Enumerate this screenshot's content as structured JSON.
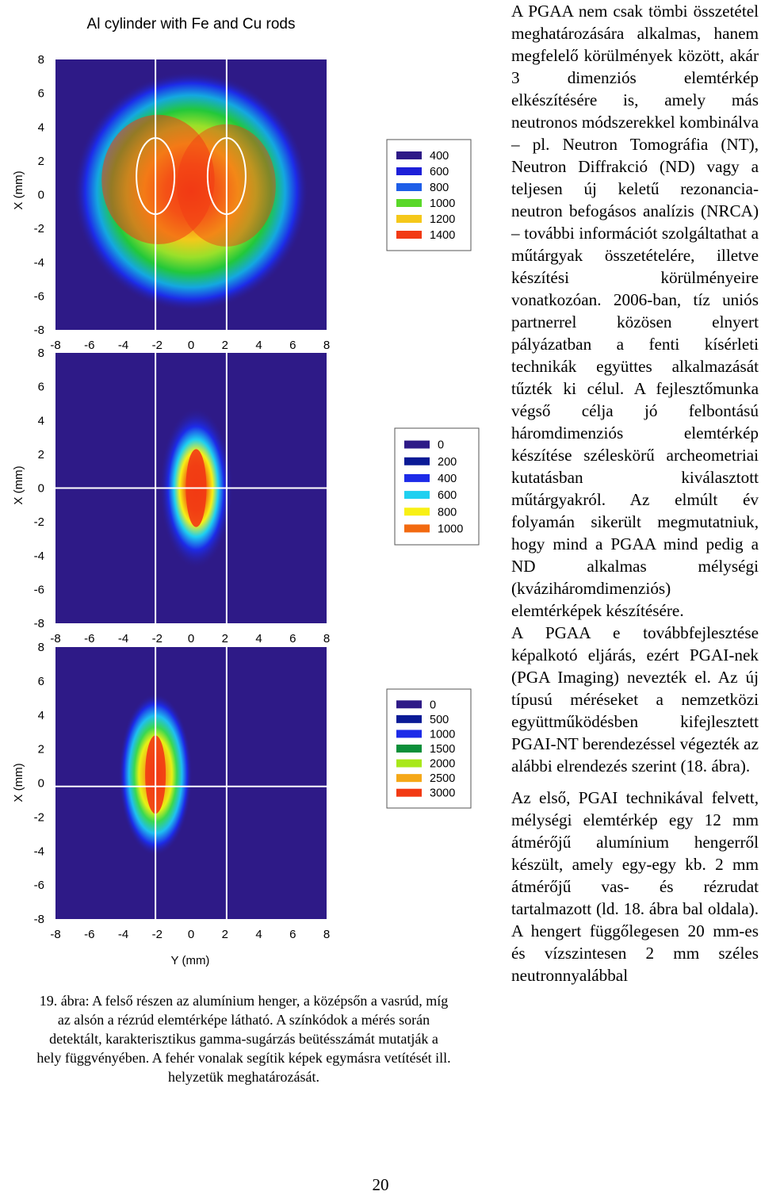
{
  "figure": {
    "title": "Al cylinder with Fe and Cu rods",
    "ylabel": "X (mm)",
    "xlabel": "Y (mm)",
    "tick_labels": [
      "-8",
      "-6",
      "-4",
      "-2",
      "0",
      "2",
      "4",
      "6",
      "8"
    ],
    "y_tick_labels": [
      "8",
      "6",
      "4",
      "2",
      "0",
      "-2",
      "-4",
      "-6",
      "-8"
    ]
  },
  "chart_data": [
    {
      "type": "heatmap",
      "name": "Al cylinder map",
      "title": "Al cylinder with Fe and Cu rods",
      "xlabel": "",
      "ylabel": "X (mm)",
      "xlim": [
        -8,
        8
      ],
      "ylim": [
        -8,
        8
      ],
      "legend": [
        "400",
        "600",
        "800",
        "1000",
        "1200",
        "1400"
      ],
      "legend_colors": [
        "#2e1a87",
        "#1d1fd8",
        "#1e5ee8",
        "#5ad82a",
        "#f5c81a",
        "#f23a14"
      ],
      "blob": {
        "center_y": 0.2,
        "center_x": 0,
        "radius_mm": 6.2,
        "peak": 1400
      },
      "guide_lines": {
        "vertical_y_mm": [
          -2.1,
          2.1
        ],
        "horizontal_x_mm": []
      },
      "ellipses_y_mm": [
        -2.1,
        2.1
      ]
    },
    {
      "type": "heatmap",
      "name": "Fe rod map",
      "xlabel": "",
      "ylabel": "X (mm)",
      "xlim": [
        -8,
        8
      ],
      "ylim": [
        -8,
        8
      ],
      "legend": [
        "0",
        "200",
        "400",
        "600",
        "800",
        "1000"
      ],
      "legend_colors": [
        "#2e1a87",
        "#0a1a96",
        "#1d2be8",
        "#1fd0f0",
        "#f8f015",
        "#f26a10"
      ],
      "blob": {
        "center_y": 0.3,
        "center_x": 0.0,
        "width_mm": 1.4,
        "height_mm": 3.2,
        "peak": 1000
      },
      "guide_lines": {
        "vertical_y_mm": [
          -2.1,
          2.1
        ],
        "horizontal_x_mm": [
          0
        ]
      }
    },
    {
      "type": "heatmap",
      "name": "Cu rod map",
      "xlabel": "Y (mm)",
      "ylabel": "X (mm)",
      "xlim": [
        -8,
        8
      ],
      "ylim": [
        -8,
        8
      ],
      "legend": [
        "0",
        "500",
        "1000",
        "1500",
        "2000",
        "2500",
        "3000"
      ],
      "legend_colors": [
        "#2e1a87",
        "#0a1a96",
        "#1d2be8",
        "#0b8f3a",
        "#a8e81a",
        "#f5a818",
        "#f23a14"
      ],
      "blob": {
        "center_y": -2.1,
        "center_x": 0.5,
        "width_mm": 1.4,
        "height_mm": 3.2,
        "peak": 3000
      },
      "guide_lines": {
        "vertical_y_mm": [
          -2.1,
          2.1
        ],
        "horizontal_x_mm": [
          -0.2
        ]
      }
    }
  ],
  "caption": "19. ábra: A felső részen az alumínium henger, a középsőn a vasrúd, míg az alsón a rézrúd elemtérképe látható. A színkódok a mérés során detektált, karakterisztikus gamma-sugárzás beütésszámát mutatják a hely függvényében. A fehér vonalak segítik képek egymásra vetítését ill. helyzetük meghatározását.",
  "caption_lines": [
    "19. ábra: A felső részen az alumínium henger, a középsőn a vasrúd, míg",
    "az alsón a rézrúd elemtérképe látható. A színkódok a mérés során",
    "detektált, karakterisztikus gamma-sugárzás beütésszámát mutatják a",
    "hely függvényében. A fehér vonalak segítik képek egymásra vetítését ill.",
    "helyzetük meghatározását."
  ],
  "body": {
    "paragraph1": "A PGAA nem csak tömbi összetétel meghatározására alkalmas, hanem megfelelő körülmények között, akár 3 dimenziós elemtérkép elkészítésére is, amely más neutronos módszerekkel kombinálva – pl. Neutron Tomográfia (NT), Neutron Diffrakció (ND) vagy a teljesen új keletű rezonancia-neutron befogásos analízis (NRCA) – további információt szolgáltathat a műtárgyak összetételére, illetve készítési körülményeire vonatkozóan. 2006-ban, tíz uniós partnerrel közösen elnyert pályázatban a fenti kísérleti technikák együttes alkalmazását tűzték ki célul. A fejlesztőmunka végső célja jó felbontású háromdimenziós elemtérkép készítése széleskörű archeometriai kutatásban kiválasztott műtárgyakról. Az elmúlt év folyamán sikerült megmutatniuk, hogy mind a PGAA mind pedig a ND alkalmas mélységi (kváziháromdimenziós) elemtérképek készítésére.",
    "paragraph2": "A PGAA e továbbfejlesztése képalkotó eljárás, ezért PGAI-nek (PGA Imaging) nevezték el. Az új típusú méréseket a nemzetközi együttműködésben kifejlesztett PGAI-NT berendezéssel végezték az alábbi elrendezés szerint (18. ábra).",
    "paragraph3": "Az első, PGAI technikával felvett, mélységi elemtérkép egy 12 mm átmérőjű alumínium hengerről készült, amely egy-egy kb. 2 mm átmérőjű vas- és rézrudat tartalmazott (ld. 18. ábra bal oldala). A hengert függőlegesen 20 mm-es és vízszintesen 2 mm széles neutronnyalábbal"
  },
  "page_number": "20"
}
